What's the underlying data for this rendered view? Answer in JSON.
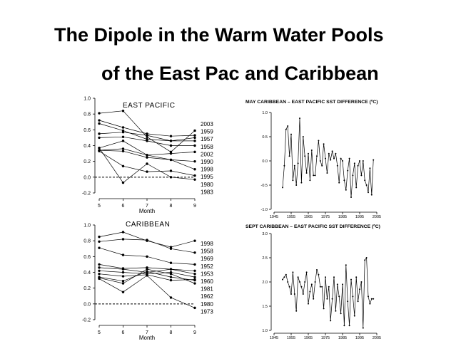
{
  "slide": {
    "title_line1": "The Dipole in the Warm Water Pools",
    "title_line2": "of the East Pac and Caribbean"
  },
  "chart_data": [
    {
      "type": "line",
      "title": "EAST PACIFIC",
      "xlabel": "Month",
      "x": [
        5,
        6,
        7,
        8,
        9
      ],
      "xlim": [
        5,
        9
      ],
      "ylim": [
        -0.2,
        1.0
      ],
      "yticks": [
        "1.0",
        "0.8",
        "0.6",
        "0.4",
        "0.2",
        "0.0",
        "-0.2"
      ],
      "xticks": [
        "5",
        "6",
        "7",
        "8",
        "9"
      ],
      "legend": [
        "2003",
        "1959",
        "1957",
        "1958",
        "2002",
        "1990",
        "1998",
        "1995",
        "1980",
        "1983"
      ],
      "reference_line": 0.0,
      "series": [
        {
          "values": [
            0.81,
            0.84,
            0.51,
            0.32,
            0.59
          ]
        },
        {
          "values": [
            0.72,
            0.63,
            0.55,
            0.52,
            0.53
          ]
        },
        {
          "values": [
            0.68,
            0.59,
            0.48,
            0.46,
            0.5
          ]
        },
        {
          "values": [
            0.55,
            0.57,
            0.53,
            0.46,
            0.46
          ]
        },
        {
          "values": [
            0.5,
            0.51,
            0.46,
            0.4,
            0.4
          ]
        },
        {
          "values": [
            0.37,
            0.46,
            0.28,
            0.3,
            0.32
          ]
        },
        {
          "values": [
            0.34,
            0.36,
            0.28,
            0.22,
            0.2
          ]
        },
        {
          "values": [
            0.34,
            0.33,
            0.25,
            0.22,
            0.1
          ]
        },
        {
          "values": [
            0.33,
            0.14,
            0.07,
            0.08,
            0.02
          ]
        },
        {
          "values": [
            0.37,
            -0.07,
            0.17,
            0.0,
            -0.03
          ]
        }
      ]
    },
    {
      "type": "line",
      "title": "CARIBBEAN",
      "xlabel": "Month",
      "x": [
        5,
        6,
        7,
        8,
        9
      ],
      "xlim": [
        5,
        9
      ],
      "ylim": [
        -0.2,
        1.0
      ],
      "yticks": [
        "1.0",
        "0.8",
        "0.6",
        "0.4",
        "0.2",
        "0.0",
        "-0.2"
      ],
      "xticks": [
        "5",
        "6",
        "7",
        "8",
        "9"
      ],
      "legend": [
        "1998",
        "1958",
        "1969",
        "1952",
        "1953",
        "1960",
        "1981",
        "1962",
        "1980",
        "1973"
      ],
      "reference_line": 0.0,
      "series": [
        {
          "values": [
            0.85,
            0.91,
            0.8,
            0.72,
            0.8
          ]
        },
        {
          "values": [
            0.79,
            0.82,
            0.81,
            0.7,
            0.65
          ]
        },
        {
          "values": [
            0.71,
            0.62,
            0.6,
            0.52,
            0.5
          ]
        },
        {
          "values": [
            0.5,
            0.45,
            0.46,
            0.44,
            0.42
          ]
        },
        {
          "values": [
            0.46,
            0.44,
            0.4,
            0.44,
            0.38
          ]
        },
        {
          "values": [
            0.42,
            0.4,
            0.38,
            0.4,
            0.34
          ]
        },
        {
          "values": [
            0.38,
            0.35,
            0.37,
            0.3,
            0.31
          ]
        },
        {
          "values": [
            0.34,
            0.29,
            0.41,
            0.34,
            0.3
          ]
        },
        {
          "values": [
            0.33,
            0.26,
            0.44,
            0.38,
            0.26
          ]
        },
        {
          "values": [
            0.32,
            0.15,
            0.36,
            0.08,
            -0.05
          ]
        }
      ]
    },
    {
      "type": "line",
      "title": "MAY CARIBBEAN – EAST PACIFIC SST DIFFERENCE (ºC)",
      "xlim": [
        1945,
        2005
      ],
      "ylim": [
        -1.0,
        1.0
      ],
      "yticks": [
        "1.0",
        "0.5",
        "0.0",
        "-0.5",
        "-1.0"
      ],
      "xticks": [
        "1945",
        "1955",
        "1965",
        "1975",
        "1985",
        "1995",
        "2005"
      ],
      "x": [
        1950,
        1951,
        1952,
        1953,
        1954,
        1955,
        1956,
        1957,
        1958,
        1959,
        1960,
        1961,
        1962,
        1963,
        1964,
        1965,
        1966,
        1967,
        1968,
        1969,
        1970,
        1971,
        1972,
        1973,
        1974,
        1975,
        1976,
        1977,
        1978,
        1979,
        1980,
        1981,
        1982,
        1983,
        1984,
        1985,
        1986,
        1987,
        1988,
        1989,
        1990,
        1991,
        1992,
        1993,
        1994,
        1995,
        1996,
        1997,
        1998,
        1999,
        2000,
        2001,
        2002,
        2003
      ],
      "values": [
        -0.55,
        -0.1,
        0.65,
        0.72,
        0.1,
        0.55,
        -0.4,
        -0.1,
        -0.5,
        -0.05,
        0.88,
        -0.45,
        0.5,
        0.1,
        -0.25,
        0.15,
        -0.4,
        0.22,
        -0.3,
        -0.3,
        0.1,
        0.42,
        0.0,
        -0.1,
        0.35,
        0.05,
        -0.25,
        0.15,
        0.02,
        0.2,
        0.05,
        0.15,
        -0.1,
        -0.45,
        0.05,
        0.0,
        -0.4,
        -0.6,
        -0.2,
        0.05,
        -0.75,
        -0.3,
        -0.05,
        -0.55,
        -0.1,
        0.0,
        -0.3,
        0.0,
        -0.4,
        -0.5,
        -0.65,
        -0.15,
        -0.7,
        0.02
      ]
    },
    {
      "type": "line",
      "title": "SEPT CARIBBEAN – EAST PACIFIC SST DIFFERENCE (ºC)",
      "xlim": [
        1945,
        2005
      ],
      "ylim": [
        1.0,
        3.0
      ],
      "yticks": [
        "3.0",
        "2.5",
        "2.0",
        "1.5",
        "1.0"
      ],
      "xticks": [
        "1945",
        "1955",
        "1965",
        "1975",
        "1985",
        "1995",
        "2005"
      ],
      "x": [
        1950,
        1951,
        1952,
        1953,
        1954,
        1955,
        1956,
        1957,
        1958,
        1959,
        1960,
        1961,
        1962,
        1963,
        1964,
        1965,
        1966,
        1967,
        1968,
        1969,
        1970,
        1971,
        1972,
        1973,
        1974,
        1975,
        1976,
        1977,
        1978,
        1979,
        1980,
        1981,
        1982,
        1983,
        1984,
        1985,
        1986,
        1987,
        1988,
        1989,
        1990,
        1991,
        1992,
        1993,
        1994,
        1995,
        1996,
        1997,
        1998,
        1999,
        2000,
        2001,
        2002,
        2003
      ],
      "values": [
        2.05,
        2.1,
        2.15,
        2.0,
        1.9,
        1.75,
        2.2,
        1.75,
        1.4,
        2.1,
        2.0,
        1.9,
        1.75,
        2.0,
        2.2,
        1.55,
        1.8,
        1.95,
        1.65,
        2.0,
        2.25,
        2.15,
        1.9,
        1.9,
        1.45,
        2.1,
        1.65,
        1.9,
        1.2,
        1.65,
        2.1,
        1.4,
        1.95,
        1.7,
        1.35,
        1.95,
        1.1,
        2.35,
        1.6,
        1.1,
        2.05,
        1.7,
        1.3,
        2.1,
        1.6,
        1.85,
        2.0,
        1.05,
        2.45,
        2.5,
        1.7,
        1.55,
        1.65,
        1.65
      ]
    }
  ]
}
